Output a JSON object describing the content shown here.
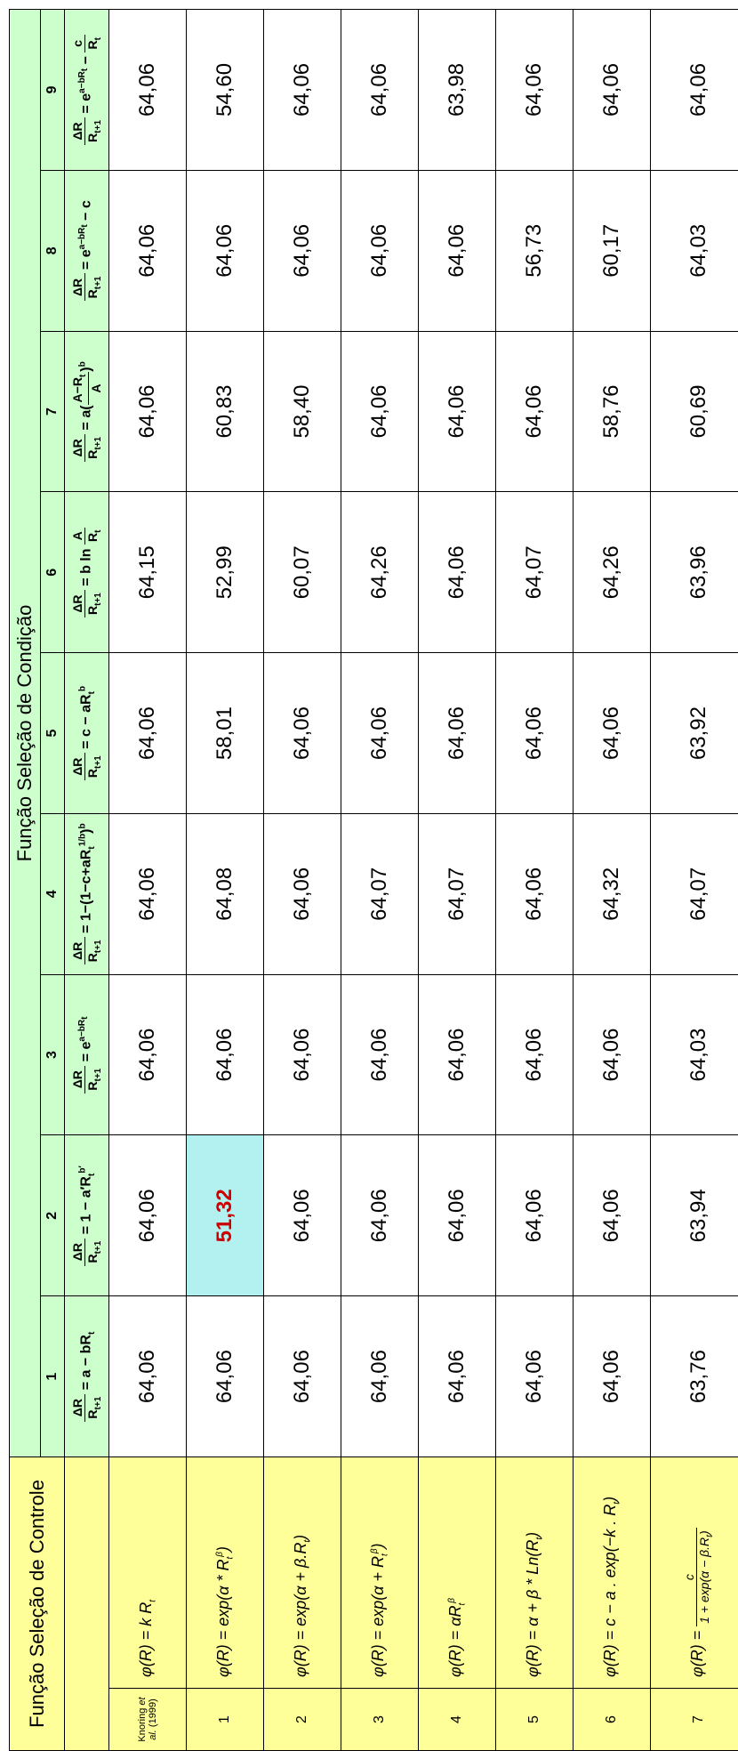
{
  "headers": {
    "control": "Função Seleção de Controle",
    "condition": "Função Seleção de Condição"
  },
  "condition_columns": [
    {
      "num": "1",
      "formula_html": "<span class='frac'><span class='num'>ΔR</span><span class='den'>R<sub>t+1</sub></span></span> = a − bR<sub>t</sub>"
    },
    {
      "num": "2",
      "formula_html": "<span class='frac'><span class='num'>ΔR</span><span class='den'>R<sub>t+1</sub></span></span> = 1 − a′R<sub>t</sub><sup>b′</sup>"
    },
    {
      "num": "3",
      "formula_html": "<span class='frac'><span class='num'>ΔR</span><span class='den'>R<sub>t+1</sub></span></span> = e<sup>a−bR<sub>t</sub></sup>"
    },
    {
      "num": "4",
      "formula_html": "<span class='frac'><span class='num'>ΔR</span><span class='den'>R<sub>t+1</sub></span></span> = 1−(1−c+aR<sub>t</sub><sup>1/b</sup>)<sup>b</sup>"
    },
    {
      "num": "5",
      "formula_html": "<span class='frac'><span class='num'>ΔR</span><span class='den'>R<sub>t+1</sub></span></span> = c − aR<sub>t</sub><sup>b</sup>"
    },
    {
      "num": "6",
      "formula_html": "<span class='frac'><span class='num'>ΔR</span><span class='den'>R<sub>t+1</sub></span></span> = b ln <span class='frac'><span class='num'>A</span><span class='den'>R<sub>t</sub></span></span>"
    },
    {
      "num": "7",
      "formula_html": "<span class='frac'><span class='num'>ΔR</span><span class='den'>R<sub>t+1</sub></span></span> = a(<span class='frac'><span class='num'>A−R<sub>t</sub></span><span class='den'>A</span></span>)<sup>b</sup>"
    },
    {
      "num": "8",
      "formula_html": "<span class='frac'><span class='num'>ΔR</span><span class='den'>R<sub>t+1</sub></span></span> = e<sup>a−bR<sub>t</sub></sup> − c"
    },
    {
      "num": "9",
      "formula_html": "<span class='frac'><span class='num'>ΔR</span><span class='den'>R<sub>t+1</sub></span></span> = e<sup>a−bR<sub>t</sub></sup> − <span class='frac'><span class='num'>c</span><span class='den'>R<sub>t</sub></span></span>"
    }
  ],
  "control_rows": [
    {
      "label_html": "Knoring <i>et al.</i> (1999)",
      "label_class": "knoring",
      "formula_html": "φ(R) = k R<sub>t</sub>"
    },
    {
      "label": "1",
      "formula_html": "φ(R) = exp(α * R<sub>t</sub><sup>β</sup>)"
    },
    {
      "label": "2",
      "formula_html": "φ(R) = exp(α + β.R<sub>t</sub>)"
    },
    {
      "label": "3",
      "formula_html": "φ(R) = exp(α + R<sub>t</sub><sup>β</sup>)"
    },
    {
      "label": "4",
      "formula_html": "φ(R) = αR<sub>t</sub><sup>β</sup>"
    },
    {
      "label": "5",
      "formula_html": "φ(R) = α + β * Ln(R<sub>t</sub>)"
    },
    {
      "label": "6",
      "formula_html": "φ(R) = c − a . exp(−k . R<sub>t</sub>)"
    },
    {
      "label": "7",
      "formula_html": "φ(R) = <span class='frac'><span class='num'>c</span><span class='den'>1 + exp(α − β.R<sub>t</sub>)</span></span>"
    }
  ],
  "data": [
    [
      "64,06",
      "64,06",
      "64,06",
      "64,06",
      "64,06",
      "64,15",
      "64,06",
      "64,06",
      "64,06"
    ],
    [
      "64,06",
      "51,32",
      "64,06",
      "64,08",
      "58,01",
      "52,99",
      "60,83",
      "64,06",
      "54,60"
    ],
    [
      "64,06",
      "64,06",
      "64,06",
      "64,06",
      "64,06",
      "60,07",
      "58,40",
      "64,06",
      "64,06"
    ],
    [
      "64,06",
      "64,06",
      "64,06",
      "64,07",
      "64,06",
      "64,26",
      "64,06",
      "64,06",
      "64,06"
    ],
    [
      "64,06",
      "64,06",
      "64,06",
      "64,07",
      "64,06",
      "64,06",
      "64,06",
      "64,06",
      "63,98"
    ],
    [
      "64,06",
      "64,06",
      "64,06",
      "64,06",
      "64,06",
      "64,07",
      "64,06",
      "56,73",
      "64,06"
    ],
    [
      "64,06",
      "64,06",
      "64,06",
      "64,32",
      "64,06",
      "64,26",
      "58,76",
      "60,17",
      "64,06"
    ],
    [
      "63,76",
      "63,94",
      "64,03",
      "64,07",
      "63,92",
      "63,96",
      "60,69",
      "64,03",
      "64,06"
    ]
  ],
  "highlight": {
    "row": 1,
    "col": 1
  },
  "colors": {
    "control_bg": "#ffff99",
    "condition_bg": "#ccffcc",
    "cell_bg": "#ffffff",
    "highlight_bg": "#b3f0f0",
    "highlight_fg": "#cc0000",
    "border": "#000000"
  }
}
